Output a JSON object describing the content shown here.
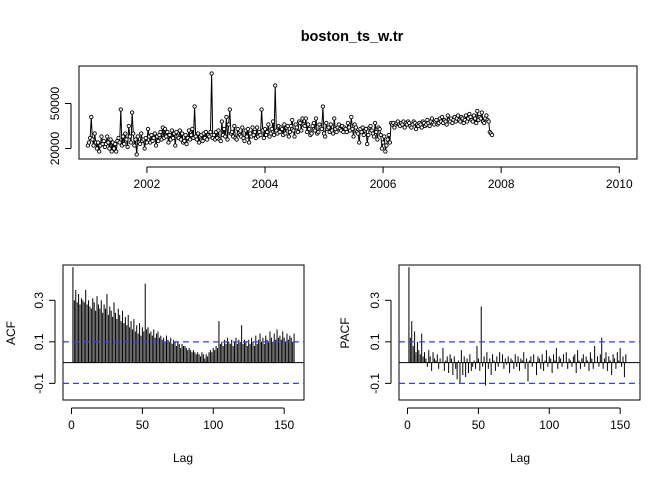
{
  "chart_data": [
    {
      "type": "line",
      "title": "boston_ts_w.tr",
      "xlabel": "",
      "ylabel": "",
      "xlim": [
        2000.85,
        2010.3
      ],
      "ylim": [
        13000,
        75000
      ],
      "xticks": [
        2002,
        2004,
        2006,
        2008,
        2010
      ],
      "xtick_labels": [
        "2002",
        "2004",
        "2006",
        "2008",
        "2010"
      ],
      "yticks": [
        20000,
        50000
      ],
      "ytick_labels": [
        "20000",
        "50000"
      ],
      "x_start": 2001.0,
      "x_step": 0.01923,
      "markers": "open-circle",
      "values": [
        22000,
        24000,
        27000,
        41000,
        26000,
        22000,
        30000,
        24000,
        20000,
        24000,
        18000,
        22000,
        28000,
        23000,
        25000,
        21000,
        23000,
        28000,
        24000,
        20000,
        26000,
        18000,
        24000,
        20000,
        23000,
        18000,
        25000,
        27000,
        24000,
        46000,
        22000,
        28000,
        23000,
        30000,
        26000,
        21000,
        35000,
        28000,
        24000,
        44000,
        30000,
        22000,
        26000,
        16000,
        28000,
        24000,
        23000,
        30000,
        25000,
        26000,
        20000,
        27000,
        24000,
        33000,
        28000,
        24000,
        29000,
        25000,
        27000,
        30000,
        22000,
        28000,
        25000,
        29000,
        31000,
        26000,
        34000,
        27000,
        33000,
        28000,
        31000,
        24000,
        29000,
        26000,
        32000,
        27000,
        30000,
        22000,
        31000,
        28000,
        27000,
        32000,
        26000,
        30000,
        24000,
        25000,
        29000,
        23000,
        27000,
        32000,
        26000,
        29000,
        33000,
        27000,
        48000,
        28000,
        26000,
        30000,
        24000,
        28000,
        29000,
        25000,
        30000,
        27000,
        31000,
        26000,
        29000,
        28000,
        31000,
        70000,
        27000,
        29000,
        26000,
        31000,
        27000,
        32000,
        26000,
        25000,
        38000,
        29000,
        33000,
        28000,
        41000,
        26000,
        36000,
        46000,
        30000,
        31000,
        28000,
        35000,
        27000,
        26000,
        33000,
        30000,
        29000,
        28000,
        34000,
        27000,
        25000,
        32000,
        28000,
        33000,
        24000,
        30000,
        28000,
        34000,
        29000,
        31000,
        27000,
        34000,
        28000,
        31000,
        29000,
        46000,
        32000,
        27000,
        33000,
        29000,
        31000,
        36000,
        28000,
        30000,
        33000,
        38000,
        29000,
        62000,
        32000,
        30000,
        35000,
        31000,
        34000,
        33000,
        29000,
        36000,
        30000,
        34000,
        35000,
        28000,
        31000,
        35000,
        39000,
        32000,
        28000,
        36000,
        34000,
        31000,
        38000,
        37000,
        32000,
        40000,
        36000,
        35000,
        40000,
        31000,
        36000,
        33000,
        29000,
        30000,
        35000,
        37000,
        32000,
        40000,
        30000,
        31000,
        36000,
        34000,
        33000,
        48000,
        30000,
        28000,
        37000,
        33000,
        34000,
        31000,
        36000,
        32000,
        30000,
        40000,
        33000,
        31000,
        34000,
        36000,
        33000,
        32000,
        35000,
        31000,
        34000,
        33000,
        31000,
        37000,
        34000,
        32000,
        41000,
        33000,
        28000,
        36000,
        34000,
        31000,
        30000,
        24000,
        33000,
        31000,
        34000,
        29000,
        32000,
        33000,
        23000,
        29000,
        34000,
        35000,
        32000,
        30000,
        28000,
        37000,
        31000,
        26000,
        34000,
        33000,
        29000,
        20000,
        24000,
        28000,
        18000,
        22000,
        26000,
        29000,
        24000,
        37000,
        36000,
        37000,
        34000,
        36000,
        37000,
        38000,
        36000,
        35000,
        37000,
        36000,
        38000,
        34000,
        37000,
        36000,
        38000,
        37000,
        35000,
        34000,
        36000,
        38000,
        37000,
        33000,
        36000,
        35000,
        37000,
        36000,
        34000,
        38000,
        37000,
        35000,
        36000,
        39000,
        37000,
        35000,
        38000,
        40000,
        37000,
        36000,
        38000,
        39000,
        36000,
        37000,
        40000,
        38000,
        41000,
        37000,
        39000,
        38000,
        36000,
        42000,
        39000,
        38000,
        40000,
        37000,
        39000,
        41000,
        38000,
        40000,
        42000,
        39000,
        38000,
        41000,
        40000,
        37000,
        39000,
        42000,
        38000,
        40000,
        43000,
        41000,
        39000,
        38000,
        42000,
        40000,
        37000,
        45000,
        39000,
        41000,
        40000,
        44000,
        38000,
        37000,
        40000,
        42000,
        39000,
        38000,
        31000,
        30000,
        29000
      ]
    },
    {
      "type": "bar",
      "title": "",
      "xlabel": "Lag",
      "ylabel": "ACF",
      "xlim": [
        -6,
        164
      ],
      "ylim": [
        -0.18,
        0.47
      ],
      "xticks": [
        0,
        50,
        100,
        150
      ],
      "xtick_labels": [
        "0",
        "50",
        "100",
        "150"
      ],
      "yticks": [
        -0.1,
        0.1,
        0.3
      ],
      "ytick_labels": [
        "-0.1",
        "0.1",
        "0.3"
      ],
      "ci": [
        0.1,
        -0.1
      ],
      "lags_start": 1,
      "values": [
        0.46,
        0.3,
        0.35,
        0.29,
        0.33,
        0.28,
        0.31,
        0.3,
        0.29,
        0.35,
        0.28,
        0.3,
        0.27,
        0.26,
        0.31,
        0.29,
        0.25,
        0.32,
        0.28,
        0.26,
        0.3,
        0.24,
        0.28,
        0.26,
        0.33,
        0.23,
        0.27,
        0.25,
        0.22,
        0.29,
        0.24,
        0.21,
        0.26,
        0.23,
        0.2,
        0.25,
        0.19,
        0.22,
        0.18,
        0.23,
        0.17,
        0.2,
        0.16,
        0.21,
        0.15,
        0.18,
        0.14,
        0.19,
        0.13,
        0.17,
        0.15,
        0.38,
        0.16,
        0.17,
        0.14,
        0.15,
        0.13,
        0.16,
        0.12,
        0.14,
        0.15,
        0.12,
        0.13,
        0.11,
        0.12,
        0.1,
        0.13,
        0.11,
        0.1,
        0.12,
        0.09,
        0.11,
        0.1,
        0.08,
        0.1,
        0.09,
        0.07,
        0.09,
        0.08,
        0.08,
        0.07,
        0.06,
        0.07,
        0.06,
        0.05,
        0.06,
        0.05,
        0.04,
        0.05,
        0.04,
        0.03,
        0.05,
        0.04,
        0.02,
        0.04,
        0.03,
        0.05,
        0.06,
        0.05,
        0.07,
        0.06,
        0.08,
        0.07,
        0.2,
        0.09,
        0.1,
        0.08,
        0.11,
        0.09,
        0.12,
        0.1,
        0.09,
        0.11,
        0.08,
        0.1,
        0.12,
        0.09,
        0.11,
        0.1,
        0.18,
        0.09,
        0.11,
        0.1,
        0.08,
        0.11,
        0.09,
        0.12,
        0.1,
        0.08,
        0.13,
        0.09,
        0.11,
        0.14,
        0.1,
        0.12,
        0.09,
        0.13,
        0.11,
        0.1,
        0.15,
        0.12,
        0.1,
        0.14,
        0.11,
        0.16,
        0.12,
        0.13,
        0.11,
        0.15,
        0.12,
        0.1,
        0.14,
        0.11,
        0.13,
        0.12,
        0.1,
        0.14
      ]
    },
    {
      "type": "bar",
      "title": "",
      "xlabel": "Lag",
      "ylabel": "PACF",
      "xlim": [
        -6,
        164
      ],
      "ylim": [
        -0.18,
        0.47
      ],
      "xticks": [
        0,
        50,
        100,
        150
      ],
      "xtick_labels": [
        "0",
        "50",
        "100",
        "150"
      ],
      "yticks": [
        -0.1,
        0.1,
        0.3
      ],
      "ytick_labels": [
        "-0.1",
        "0.1",
        "0.3"
      ],
      "ci": [
        0.1,
        -0.1
      ],
      "lags_start": 1,
      "values": [
        0.46,
        0.12,
        0.2,
        0.08,
        0.15,
        0.05,
        0.1,
        0.06,
        0.04,
        0.14,
        0.03,
        0.05,
        0.02,
        -0.02,
        0.06,
        0.03,
        -0.04,
        0.05,
        0.02,
        0.01,
        0.04,
        -0.03,
        0.02,
        0.0,
        0.07,
        -0.04,
        0.01,
        0.03,
        -0.05,
        0.04,
        0.02,
        -0.06,
        0.03,
        -0.03,
        -0.08,
        0.01,
        -0.1,
        0.06,
        -0.06,
        0.03,
        -0.07,
        0.02,
        -0.05,
        0.04,
        -0.04,
        -0.02,
        0.01,
        -0.03,
        0.08,
        0.02,
        -0.04,
        0.27,
        -0.02,
        0.03,
        -0.11,
        0.05,
        -0.03,
        0.02,
        -0.06,
        0.04,
        0.01,
        -0.04,
        0.03,
        -0.02,
        0.05,
        0.0,
        0.04,
        -0.03,
        0.02,
        -0.01,
        0.03,
        -0.05,
        0.02,
        0.01,
        -0.03,
        0.04,
        -0.02,
        0.03,
        -0.04,
        0.02,
        0.01,
        0.05,
        -0.03,
        0.02,
        -0.09,
        0.01,
        0.03,
        -0.02,
        0.04,
        0.0,
        -0.06,
        0.03,
        0.02,
        -0.03,
        0.04,
        -0.04,
        0.01,
        0.06,
        -0.02,
        0.03,
        0.02,
        -0.05,
        0.04,
        0.01,
        0.07,
        -0.03,
        0.03,
        0.02,
        -0.02,
        0.04,
        0.0,
        0.05,
        -0.03,
        0.02,
        0.01,
        -0.02,
        0.03,
        0.04,
        -0.05,
        0.06,
        0.01,
        -0.03,
        0.02,
        0.04,
        -0.02,
        0.03,
        0.01,
        -0.04,
        0.05,
        0.02,
        -0.03,
        0.08,
        0.0,
        0.03,
        -0.02,
        0.04,
        0.12,
        -0.03,
        0.02,
        0.05,
        -0.04,
        0.03,
        0.01,
        -0.06,
        0.04,
        0.02,
        -0.03,
        0.05,
        0.01,
        0.07,
        -0.02,
        0.03,
        -0.07,
        0.04
      ]
    }
  ]
}
